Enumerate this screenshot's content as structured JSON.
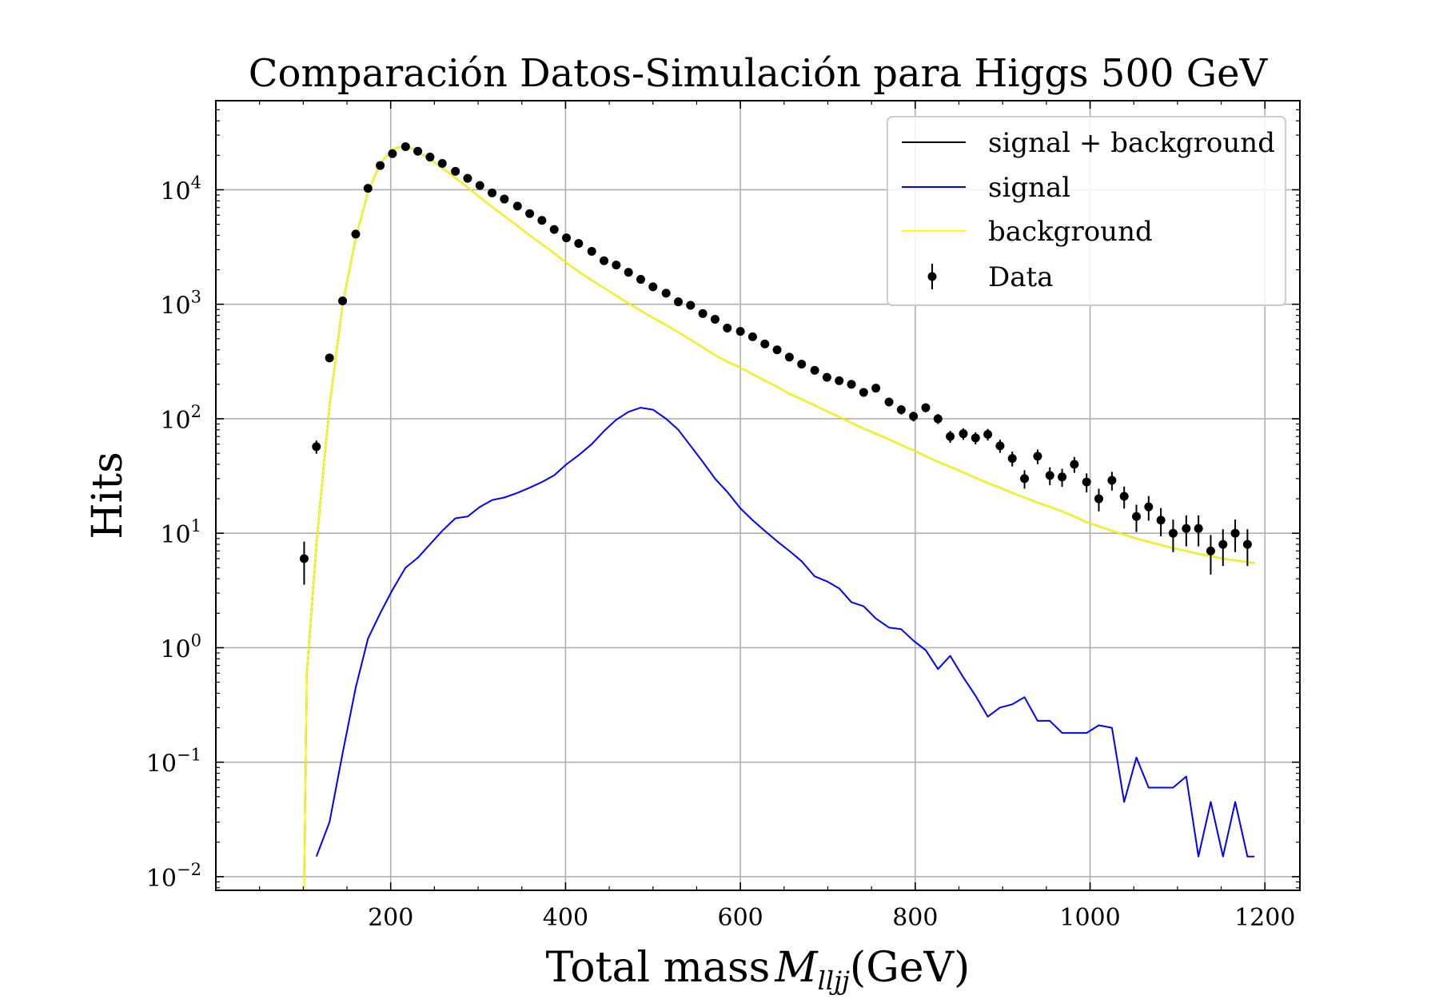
{
  "chart_data": {
    "type": "line",
    "title": "Comparación Datos-Simulación para Higgs 500 GeV",
    "xlabel": "Total mass",
    "xlabel_math": "M",
    "xlabel_sub": "lljj",
    "xlabel_unit": "(GeV)",
    "ylabel": "Hits",
    "xlim": [
      0,
      1240
    ],
    "ylim": [
      0.0076,
      60000
    ],
    "yscale": "log",
    "grid": true,
    "legend_position": "top-right",
    "xticks": [
      200,
      400,
      600,
      800,
      1000,
      1200
    ],
    "xtick_labels": [
      "200",
      "400",
      "600",
      "800",
      "1000",
      "1200"
    ],
    "yticks": [
      0.01,
      0.1,
      1,
      10,
      100,
      1000,
      10000
    ],
    "ytick_base": "10",
    "ytick_exponents": [
      "−2",
      "−1",
      "0",
      "1",
      "2",
      "3",
      "4"
    ],
    "series": [
      {
        "name": "signal + background",
        "color": "#000000",
        "kind": "line",
        "x": [
          101,
          104,
          115,
          130,
          145,
          160,
          174,
          188,
          202,
          217,
          231,
          245,
          259,
          274,
          288,
          302,
          316,
          330,
          345,
          359,
          373,
          387,
          401,
          415,
          430,
          444,
          458,
          472,
          486,
          500,
          515,
          529,
          543,
          557,
          571,
          585,
          600,
          614,
          628,
          642,
          656,
          670,
          685,
          699,
          713,
          727,
          741,
          755,
          770,
          784,
          798,
          812,
          826,
          840,
          855,
          869,
          883,
          897,
          911,
          925,
          940,
          954,
          968,
          982,
          996,
          1010,
          1025,
          1039,
          1053,
          1067,
          1081,
          1095,
          1110,
          1124,
          1138,
          1152,
          1166,
          1180,
          1188
        ],
        "y": [
          0.006,
          0.58,
          8,
          130,
          1000,
          3800,
          9500,
          17000,
          22500,
          24500,
          21500,
          18500,
          15500,
          12700,
          10500,
          8600,
          7100,
          5900,
          4850,
          4000,
          3350,
          2800,
          2300,
          1930,
          1620,
          1390,
          1190,
          1020,
          880,
          760,
          660,
          570,
          490,
          420,
          360,
          315,
          280,
          245,
          215,
          190,
          165,
          148,
          131,
          116,
          104,
          92,
          82,
          74,
          66,
          59,
          53,
          47,
          42,
          38,
          34,
          30.5,
          27.5,
          25,
          22.5,
          20.5,
          18.5,
          17,
          15.5,
          14,
          12.5,
          11.5,
          10.5,
          9.7,
          9,
          8.4,
          7.9,
          7.4,
          7,
          6.6,
          6.3,
          6,
          5.8,
          5.6,
          5.5
        ]
      },
      {
        "name": "signal",
        "color": "#0000ff",
        "kind": "line",
        "x": [
          115,
          130,
          145,
          160,
          174,
          188,
          202,
          217,
          231,
          245,
          259,
          274,
          288,
          302,
          316,
          330,
          345,
          359,
          373,
          387,
          401,
          415,
          430,
          444,
          458,
          472,
          486,
          500,
          515,
          529,
          543,
          557,
          571,
          585,
          600,
          614,
          628,
          642,
          656,
          670,
          685,
          699,
          713,
          727,
          741,
          755,
          770,
          784,
          798,
          812,
          826,
          840,
          855,
          869,
          883,
          897,
          911,
          925,
          940,
          954,
          968,
          982,
          996,
          1010,
          1025,
          1039,
          1053,
          1067,
          1081,
          1095,
          1110,
          1124,
          1138,
          1152,
          1166,
          1180,
          1188
        ],
        "y": [
          0.015,
          0.03,
          0.12,
          0.45,
          1.2,
          2.0,
          3.2,
          5.0,
          6.1,
          8.0,
          10.5,
          13.5,
          14.0,
          17.0,
          19.5,
          20.5,
          22.5,
          25.0,
          28.0,
          32.0,
          40.0,
          48.0,
          60.0,
          78.0,
          98.0,
          115.0,
          125.0,
          120.0,
          100.0,
          80.0,
          58.0,
          42.0,
          30.0,
          23.0,
          16.5,
          13.0,
          10.5,
          8.5,
          7.0,
          5.7,
          4.2,
          3.8,
          3.3,
          2.5,
          2.3,
          1.8,
          1.5,
          1.45,
          1.15,
          0.95,
          0.65,
          0.85,
          0.55,
          0.38,
          0.25,
          0.3,
          0.32,
          0.37,
          0.23,
          0.23,
          0.18,
          0.18,
          0.18,
          0.21,
          0.2,
          0.045,
          0.11,
          0.06,
          0.06,
          0.06,
          0.075,
          0.015,
          0.045,
          0.015,
          0.045,
          0.015,
          0.015
        ]
      },
      {
        "name": "background",
        "color": "#ffff00",
        "kind": "line",
        "x": [
          101,
          104,
          115,
          130,
          145,
          160,
          174,
          188,
          202,
          217,
          231,
          245,
          259,
          274,
          288,
          302,
          316,
          330,
          345,
          359,
          373,
          387,
          401,
          415,
          430,
          444,
          458,
          472,
          486,
          500,
          515,
          529,
          543,
          557,
          571,
          585,
          600,
          614,
          628,
          642,
          656,
          670,
          685,
          699,
          713,
          727,
          741,
          755,
          770,
          784,
          798,
          812,
          826,
          840,
          855,
          869,
          883,
          897,
          911,
          925,
          940,
          954,
          968,
          982,
          996,
          1010,
          1025,
          1039,
          1053,
          1067,
          1081,
          1095,
          1110,
          1124,
          1138,
          1152,
          1166,
          1180,
          1188
        ],
        "y": [
          0.006,
          0.58,
          8,
          130,
          1000,
          3800,
          9500,
          17000,
          22500,
          24500,
          21500,
          18500,
          15500,
          12700,
          10500,
          8600,
          7100,
          5900,
          4850,
          4000,
          3350,
          2800,
          2300,
          1930,
          1620,
          1390,
          1190,
          1020,
          880,
          760,
          660,
          570,
          490,
          420,
          360,
          315,
          280,
          245,
          215,
          190,
          165,
          148,
          131,
          116,
          104,
          92,
          82,
          74,
          66,
          59,
          53,
          47,
          42,
          38,
          34,
          30.5,
          27.5,
          25,
          22.5,
          20.5,
          18.5,
          17,
          15.5,
          14,
          12.5,
          11.5,
          10.5,
          9.7,
          9,
          8.4,
          7.9,
          7.4,
          7,
          6.6,
          6.3,
          6,
          5.8,
          5.6,
          5.5
        ]
      },
      {
        "name": "Data",
        "color": "#000000",
        "kind": "errorbar",
        "x": [
          101,
          115,
          130,
          145,
          160,
          174,
          188,
          202,
          217,
          231,
          245,
          259,
          274,
          288,
          302,
          316,
          330,
          345,
          359,
          373,
          387,
          401,
          415,
          430,
          444,
          458,
          472,
          486,
          500,
          515,
          529,
          543,
          557,
          571,
          585,
          600,
          614,
          628,
          642,
          656,
          670,
          685,
          699,
          713,
          727,
          741,
          755,
          770,
          784,
          798,
          812,
          826,
          840,
          855,
          869,
          883,
          897,
          911,
          925,
          940,
          954,
          968,
          982,
          996,
          1010,
          1025,
          1039,
          1053,
          1067,
          1081,
          1095,
          1110,
          1124,
          1138,
          1152,
          1166,
          1180
        ],
        "y": [
          6,
          57,
          340,
          1070,
          4100,
          10300,
          16300,
          20700,
          23800,
          21700,
          19300,
          17000,
          14500,
          12600,
          10900,
          9400,
          8300,
          7200,
          6200,
          5400,
          4500,
          3800,
          3400,
          2900,
          2400,
          2200,
          1900,
          1650,
          1420,
          1250,
          1050,
          980,
          830,
          740,
          620,
          580,
          520,
          450,
          400,
          345,
          300,
          265,
          230,
          215,
          200,
          170,
          185,
          140,
          120,
          105,
          125,
          100,
          70,
          74,
          68,
          73,
          58,
          45,
          30,
          47,
          32,
          31,
          40,
          28,
          20,
          29,
          21,
          14,
          17,
          13,
          10,
          11,
          11,
          7,
          8,
          10,
          8
        ]
      }
    ]
  }
}
